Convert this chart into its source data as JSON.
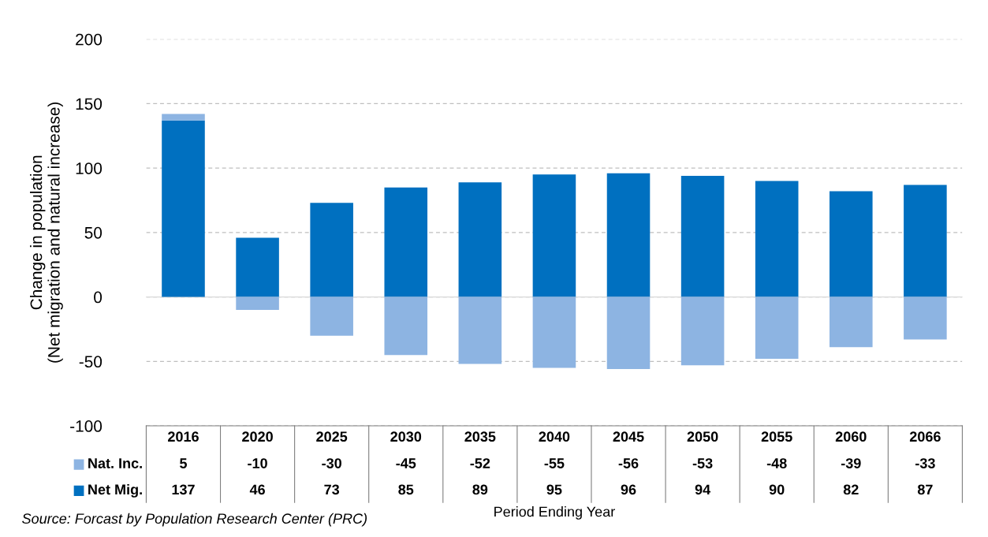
{
  "chart_data": {
    "type": "bar",
    "stacked": true,
    "categories": [
      "2016",
      "2020",
      "2025",
      "2030",
      "2035",
      "2040",
      "2045",
      "2050",
      "2055",
      "2060",
      "2066"
    ],
    "series": [
      {
        "name": "Net Mig.",
        "color": "#0070c0",
        "values": [
          137,
          46,
          73,
          85,
          89,
          95,
          96,
          94,
          90,
          82,
          87
        ]
      },
      {
        "name": "Nat. Inc.",
        "color": "#8db4e2",
        "values": [
          5,
          -10,
          -30,
          -45,
          -52,
          -55,
          -56,
          -53,
          -48,
          -39,
          -33
        ]
      }
    ],
    "ylabel": "Change in population\n(Net migration and natural increase)",
    "xlabel": "Period Ending Year",
    "ylim": [
      -100,
      200
    ],
    "yticks": [
      -100,
      -50,
      0,
      50,
      100,
      150,
      200
    ],
    "grid": "y",
    "legend": "bottom left",
    "data_labels": true,
    "annotations": [
      "Source: Forcast by Population Research Center (PRC)"
    ]
  }
}
